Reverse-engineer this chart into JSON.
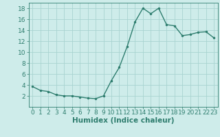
{
  "x": [
    0,
    1,
    2,
    3,
    4,
    5,
    6,
    7,
    8,
    9,
    10,
    11,
    12,
    13,
    14,
    15,
    16,
    17,
    18,
    19,
    20,
    21,
    22,
    23
  ],
  "y": [
    3.7,
    3.0,
    2.8,
    2.2,
    2.0,
    2.0,
    1.8,
    1.6,
    1.5,
    2.0,
    4.8,
    7.2,
    11.0,
    15.5,
    18.0,
    17.0,
    18.0,
    15.0,
    14.8,
    13.0,
    13.2,
    13.6,
    13.7,
    12.6
  ],
  "xlabel": "Humidex (Indice chaleur)",
  "xlim": [
    -0.5,
    23.5
  ],
  "ylim": [
    0,
    19
  ],
  "yticks": [
    2,
    4,
    6,
    8,
    10,
    12,
    14,
    16,
    18
  ],
  "xticks": [
    0,
    1,
    2,
    3,
    4,
    5,
    6,
    7,
    8,
    9,
    10,
    11,
    12,
    13,
    14,
    15,
    16,
    17,
    18,
    19,
    20,
    21,
    22,
    23
  ],
  "line_color": "#2e7d6e",
  "marker_color": "#2e7d6e",
  "bg_color": "#ceecea",
  "grid_color": "#a8d4d0",
  "tick_fontsize": 6.5,
  "xlabel_fontsize": 7.5,
  "linewidth": 1.0,
  "markersize": 3.0
}
